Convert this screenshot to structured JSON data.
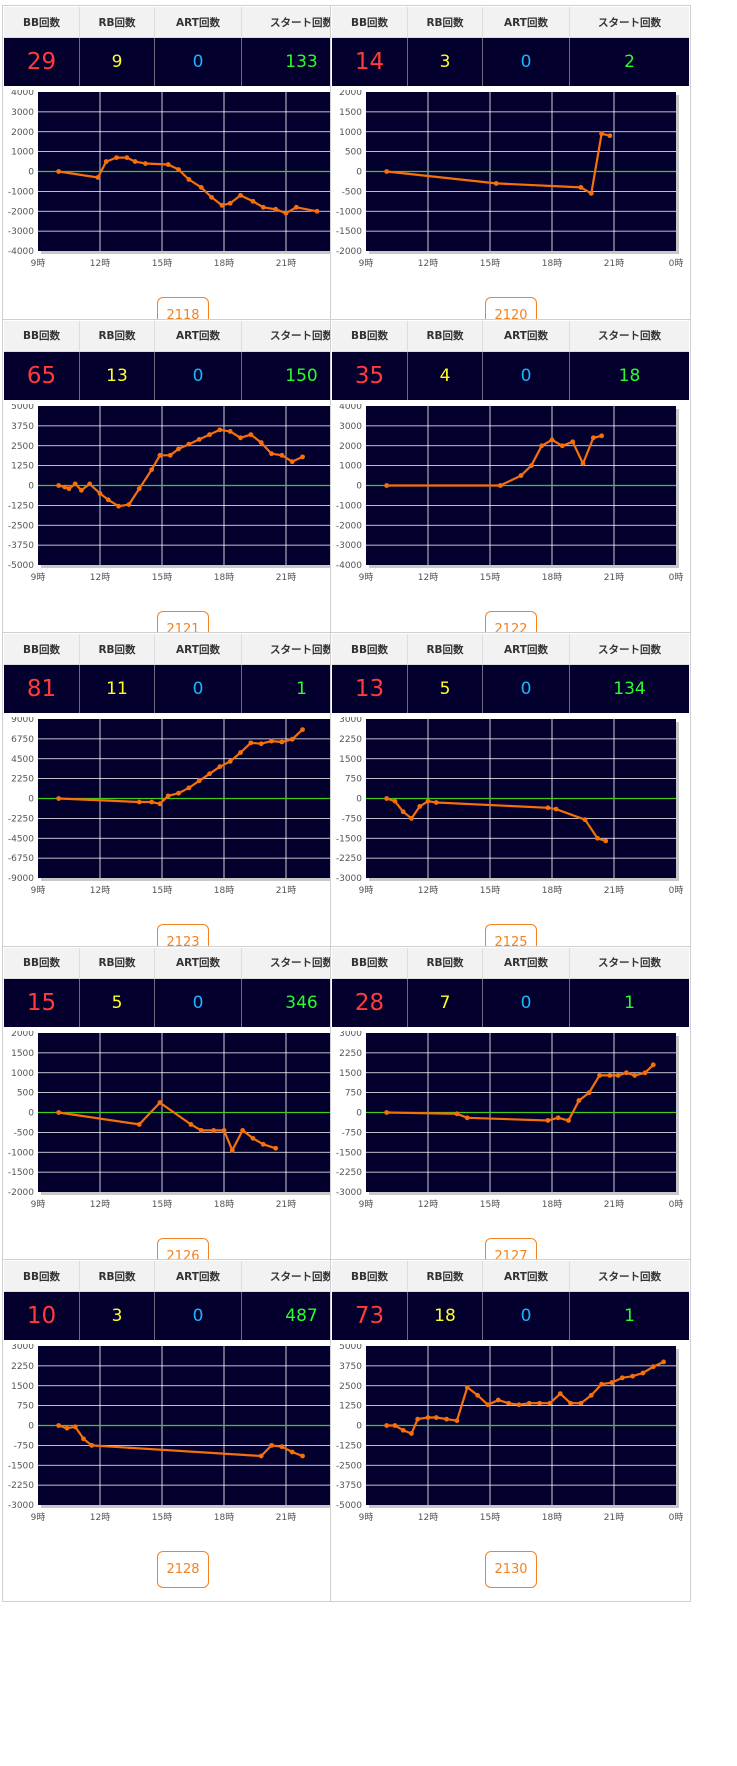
{
  "header": {
    "bb": "BB回数",
    "rb": "RB回数",
    "art": "ART回数",
    "start": "スタート回数"
  },
  "colors": {
    "plot_bg": "#03002e",
    "line": "#f5700a",
    "zero_line": "#45c917",
    "bb": "#ff3b3b",
    "rb": "#ffff22",
    "art": "#1cb4ff",
    "start": "#28ff28",
    "button": "#f58220"
  },
  "x_ticks": [
    "9時",
    "12時",
    "15時",
    "18時",
    "21時",
    "0時"
  ],
  "machines": [
    {
      "id": "2118",
      "bb": "29",
      "rb": "9",
      "art": "0",
      "start": "133"
    },
    {
      "id": "2120",
      "bb": "14",
      "rb": "3",
      "art": "0",
      "start": "2"
    },
    {
      "id": "2121",
      "bb": "65",
      "rb": "13",
      "art": "0",
      "start": "150"
    },
    {
      "id": "2122",
      "bb": "35",
      "rb": "4",
      "art": "0",
      "start": "18"
    },
    {
      "id": "2123",
      "bb": "81",
      "rb": "11",
      "art": "0",
      "start": "1"
    },
    {
      "id": "2125",
      "bb": "13",
      "rb": "5",
      "art": "0",
      "start": "134"
    },
    {
      "id": "2126",
      "bb": "15",
      "rb": "5",
      "art": "0",
      "start": "346"
    },
    {
      "id": "2127",
      "bb": "28",
      "rb": "7",
      "art": "0",
      "start": "1"
    },
    {
      "id": "2128",
      "bb": "10",
      "rb": "3",
      "art": "0",
      "start": "487"
    },
    {
      "id": "2130",
      "bb": "73",
      "rb": "18",
      "art": "0",
      "start": "1"
    }
  ],
  "chart_data": [
    {
      "type": "line",
      "machine": "2118",
      "x_range": [
        9,
        24
      ],
      "ylim": [
        -4000,
        4000
      ],
      "y_ticks": [
        "4000",
        "3000",
        "2000",
        "1000",
        "0",
        "-1000",
        "-2000",
        "-3000",
        "-4000"
      ],
      "x": [
        10,
        11.9,
        12.3,
        12.8,
        13.3,
        13.7,
        14.2,
        15.3,
        15.8,
        16.3,
        16.9,
        17.4,
        17.9,
        18.3,
        18.8,
        19.4,
        19.9,
        20.5,
        21,
        21.5,
        22.5
      ],
      "y": [
        0,
        -300,
        500,
        700,
        700,
        500,
        400,
        350,
        100,
        -400,
        -800,
        -1300,
        -1700,
        -1600,
        -1200,
        -1500,
        -1800,
        -1900,
        -2100,
        -1800,
        -2000
      ]
    },
    {
      "type": "line",
      "machine": "2120",
      "x_range": [
        9,
        24
      ],
      "ylim": [
        -2000,
        2000
      ],
      "y_ticks": [
        "2000",
        "1500",
        "1000",
        "500",
        "0",
        "-500",
        "-1000",
        "-1500",
        "-2000"
      ],
      "x": [
        10,
        15.3,
        19.4,
        19.9,
        20.4,
        20.8
      ],
      "y": [
        0,
        -300,
        -400,
        -550,
        950,
        900
      ]
    },
    {
      "type": "line",
      "machine": "2121",
      "x_range": [
        9,
        24
      ],
      "ylim": [
        -5000,
        5000
      ],
      "y_ticks": [
        "5000",
        "3750",
        "2500",
        "1250",
        "0",
        "-1250",
        "-2500",
        "-3750",
        "-5000"
      ],
      "x": [
        10,
        10.3,
        10.5,
        10.8,
        11.1,
        11.5,
        12,
        12.4,
        12.9,
        13.4,
        13.9,
        14.5,
        14.9,
        15.4,
        15.8,
        16.3,
        16.8,
        17.3,
        17.8,
        18.3,
        18.8,
        19.3,
        19.8,
        20.3,
        20.8,
        21.3,
        21.8
      ],
      "y": [
        0,
        -100,
        -200,
        100,
        -300,
        100,
        -500,
        -900,
        -1300,
        -1200,
        -200,
        1000,
        1900,
        1900,
        2300,
        2600,
        2900,
        3200,
        3500,
        3400,
        3000,
        3200,
        2700,
        2000,
        1900,
        1500,
        1800
      ]
    },
    {
      "type": "line",
      "machine": "2122",
      "x_range": [
        9,
        24
      ],
      "ylim": [
        -4000,
        4000
      ],
      "y_ticks": [
        "4000",
        "3000",
        "2000",
        "1000",
        "0",
        "-1000",
        "-2000",
        "-3000",
        "-4000"
      ],
      "x": [
        10,
        15.5,
        16.5,
        17,
        17.5,
        18,
        18.5,
        19,
        19.5,
        20,
        20.4
      ],
      "y": [
        0,
        0,
        500,
        1000,
        2000,
        2300,
        2000,
        2200,
        1100,
        2400,
        2500
      ]
    },
    {
      "type": "line",
      "machine": "2123",
      "x_range": [
        9,
        24
      ],
      "ylim": [
        -9000,
        9000
      ],
      "y_ticks": [
        "9000",
        "6750",
        "4500",
        "2250",
        "0",
        "-2250",
        "-4500",
        "-6750",
        "-9000"
      ],
      "x": [
        10,
        13.9,
        14.5,
        14.9,
        15.3,
        15.8,
        16.3,
        16.8,
        17.3,
        17.8,
        18.3,
        18.8,
        19.3,
        19.8,
        20.3,
        20.8,
        21.3,
        21.8
      ],
      "y": [
        0,
        -400,
        -400,
        -600,
        300,
        600,
        1200,
        2000,
        2800,
        3600,
        4200,
        5200,
        6300,
        6200,
        6500,
        6400,
        6700,
        7800
      ]
    },
    {
      "type": "line",
      "machine": "2125",
      "x_range": [
        9,
        24
      ],
      "ylim": [
        -3000,
        3000
      ],
      "y_ticks": [
        "3000",
        "2250",
        "1500",
        "750",
        "0",
        "-750",
        "-1500",
        "-2250",
        "-3000"
      ],
      "x": [
        10,
        10.4,
        10.8,
        11.2,
        11.6,
        12,
        12.4,
        17.8,
        18.2,
        19.6,
        20.2,
        20.6
      ],
      "y": [
        0,
        -100,
        -500,
        -750,
        -300,
        -100,
        -150,
        -350,
        -400,
        -800,
        -1500,
        -1600
      ]
    },
    {
      "type": "line",
      "machine": "2126",
      "x_range": [
        9,
        24
      ],
      "ylim": [
        -2000,
        2000
      ],
      "y_ticks": [
        "2000",
        "1500",
        "1000",
        "500",
        "0",
        "-500",
        "-1000",
        "-1500",
        "-2000"
      ],
      "x": [
        10,
        13.9,
        14.9,
        16.4,
        16.9,
        17.5,
        18.0,
        18.4,
        18.9,
        19.4,
        19.9,
        20.5
      ],
      "y": [
        0,
        -300,
        250,
        -300,
        -450,
        -450,
        -450,
        -950,
        -450,
        -650,
        -800,
        -900
      ]
    },
    {
      "type": "line",
      "machine": "2127",
      "x_range": [
        9,
        24
      ],
      "ylim": [
        -3000,
        3000
      ],
      "y_ticks": [
        "3000",
        "2250",
        "1500",
        "750",
        "0",
        "-750",
        "-1500",
        "-2250",
        "-3000"
      ],
      "x": [
        10,
        13.4,
        13.9,
        17.8,
        18.3,
        18.8,
        19.3,
        19.8,
        20.3,
        20.8,
        21.2,
        21.6,
        22,
        22.5,
        22.9
      ],
      "y": [
        0,
        -50,
        -200,
        -300,
        -200,
        -300,
        450,
        750,
        1400,
        1400,
        1400,
        1500,
        1400,
        1500,
        1800
      ]
    },
    {
      "type": "line",
      "machine": "2128",
      "x_range": [
        9,
        24
      ],
      "ylim": [
        -3000,
        3000
      ],
      "y_ticks": [
        "3000",
        "2250",
        "1500",
        "750",
        "0",
        "-750",
        "-1500",
        "-2250",
        "-3000"
      ],
      "x": [
        10,
        10.4,
        10.8,
        11.2,
        11.6,
        19.8,
        20.3,
        20.8,
        21.3,
        21.8
      ],
      "y": [
        0,
        -100,
        -50,
        -500,
        -750,
        -1150,
        -750,
        -800,
        -1000,
        -1150
      ]
    },
    {
      "type": "line",
      "machine": "2130",
      "x_range": [
        9,
        24
      ],
      "ylim": [
        -5000,
        5000
      ],
      "y_ticks": [
        "5000",
        "3750",
        "2500",
        "1250",
        "0",
        "-1250",
        "-2500",
        "-3750",
        "-5000"
      ],
      "x": [
        10,
        10.4,
        10.8,
        11.2,
        11.5,
        12,
        12.4,
        12.9,
        13.4,
        13.9,
        14.4,
        14.9,
        15.4,
        15.9,
        16.4,
        16.9,
        17.4,
        17.9,
        18.4,
        18.9,
        19.4,
        19.9,
        20.4,
        20.9,
        21.4,
        21.9,
        22.4,
        22.9,
        23.4
      ],
      "y": [
        0,
        0,
        -300,
        -500,
        400,
        500,
        500,
        400,
        300,
        2400,
        1900,
        1300,
        1600,
        1400,
        1300,
        1400,
        1400,
        1400,
        2000,
        1400,
        1400,
        1900,
        2600,
        2700,
        3000,
        3100,
        3300,
        3700,
        4000
      ]
    }
  ]
}
